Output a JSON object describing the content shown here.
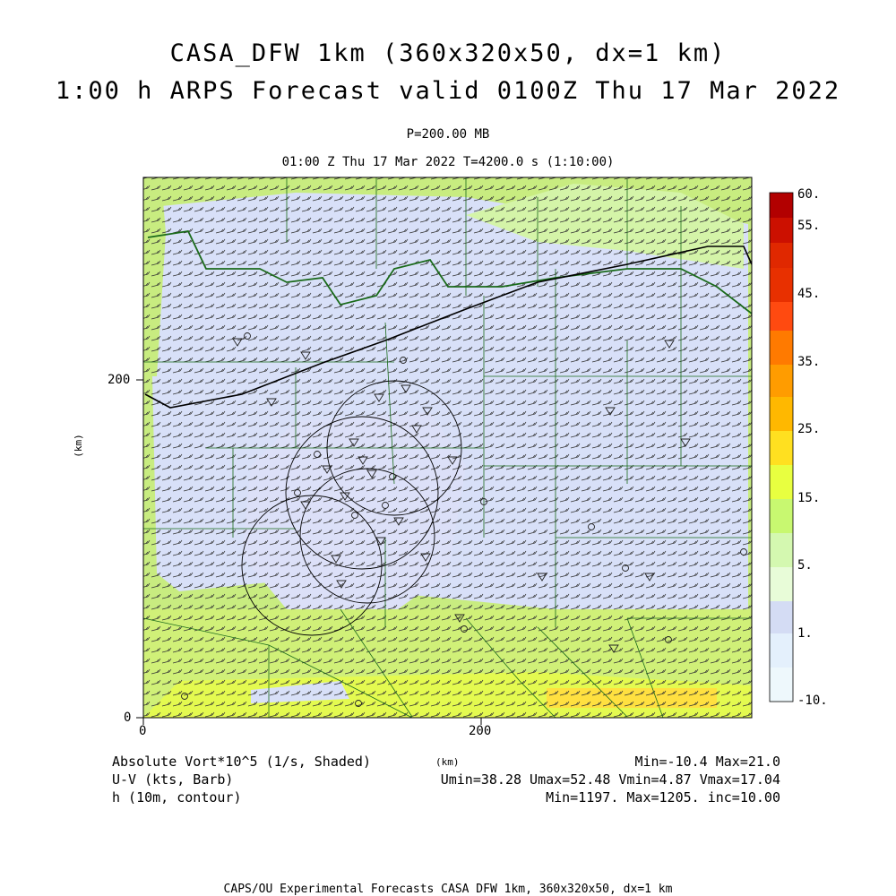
{
  "title": {
    "line1": "CASA_DFW 1km (360x320x50, dx=1 km)",
    "line2": "1:00 h ARPS Forecast valid 0100Z Thu 17 Mar 2022"
  },
  "level": "P=200.00 MB",
  "time_label": "01:00 Z Thu 17 Mar 2022   T=4200.0 s (1:10:00)",
  "axes": {
    "x_ticks": [
      "0",
      "200"
    ],
    "y_ticks": [
      "0",
      "200"
    ],
    "x_unit": "(km)",
    "y_unit": "(km)"
  },
  "colorbar": {
    "labels": [
      "60.",
      "55.",
      "45.",
      "35.",
      "25.",
      "15.",
      "5.",
      "1.",
      "-10."
    ],
    "colors": [
      "#b20000",
      "#d41c00",
      "#e83000",
      "#ff4a10",
      "#ff8400",
      "#ffb400",
      "#ffd820",
      "#e8ff40",
      "#c8f870",
      "#d4f8b0",
      "#d4dcf4",
      "#e4f0fc",
      "#eef8fc"
    ]
  },
  "legend": {
    "field1": "Absolute Vort*10^5 (1/s, Shaded)",
    "field2": "U-V (kts, Barb)",
    "field3": "h (10m, contour)",
    "km_label": "(km)",
    "stats1": "Min=-10.4 Max=21.0",
    "stats2": "Umin=38.28 Umax=52.48 Vmin=4.87 Vmax=17.04",
    "stats3": "Min=1197. Max=1205. inc=10.00"
  },
  "credit": "CAPS/OU Experimental Forecasts  CASA DFW 1km, 360x320x50, dx=1 km",
  "colors": {
    "map_light_blue": "#d8e0f8",
    "map_green": "#c8f070",
    "map_yellow": "#e4f850",
    "border_green": "#1a6a1a",
    "contour": "#000000"
  }
}
